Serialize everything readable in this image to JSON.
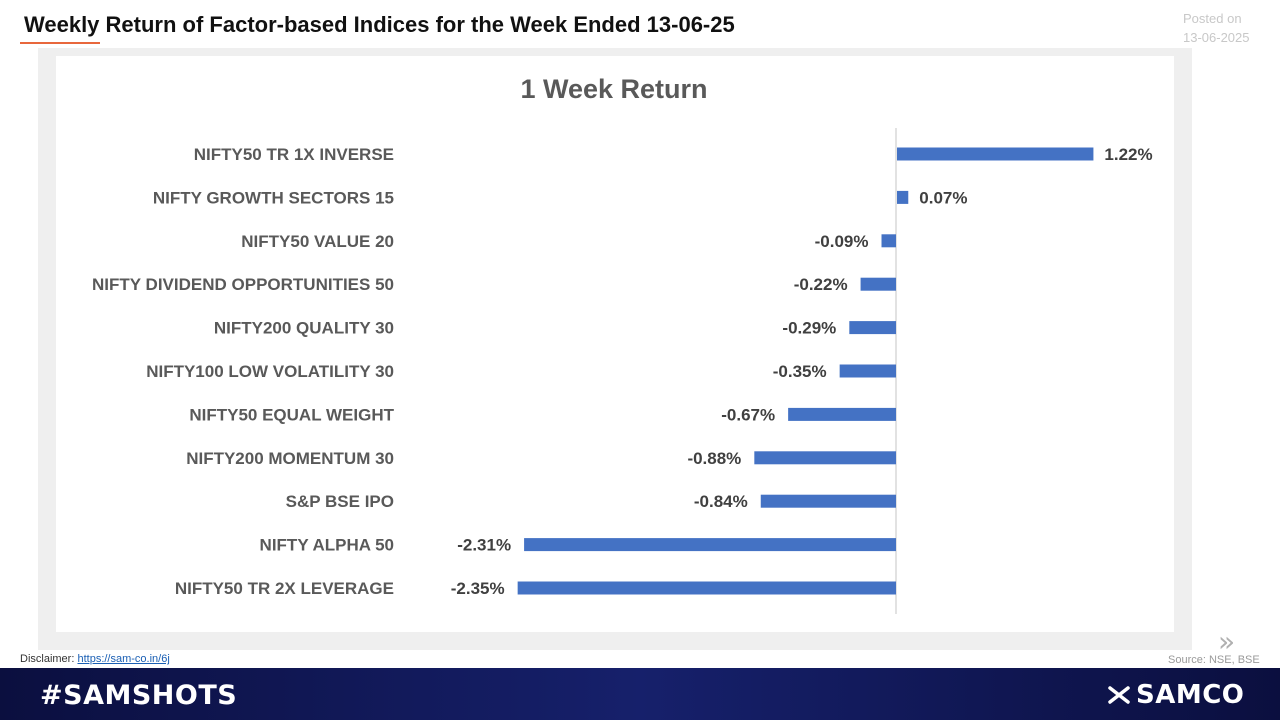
{
  "header": {
    "title": "Weekly Return of Factor-based Indices for the Week Ended 13-06-25",
    "posted_label": "Posted on",
    "posted_date": "13-06-2025"
  },
  "footer": {
    "disclaimer_label": "Disclaimer:",
    "disclaimer_link": "https://sam-co.in/6j",
    "source": "Source: NSE, BSE",
    "hashtag": "#SAMSHOTS",
    "brand": "SAMCO"
  },
  "colors": {
    "bar": "#4472c4",
    "accent": "#e8673c",
    "footer_bg": "#0f1552"
  },
  "chart_data": {
    "type": "bar",
    "orientation": "horizontal",
    "title": "1 Week Return",
    "categories": [
      "NIFTY50 TR 1X INVERSE",
      "NIFTY GROWTH SECTORS 15",
      "NIFTY50 VALUE 20",
      "NIFTY DIVIDEND OPPORTUNITIES 50",
      "NIFTY200 QUALITY 30",
      "NIFTY100 LOW VOLATILITY 30",
      "NIFTY50 EQUAL WEIGHT",
      "NIFTY200 MOMENTUM 30",
      "S&P BSE IPO",
      "NIFTY ALPHA 50",
      "NIFTY50 TR 2X LEVERAGE"
    ],
    "values": [
      1.22,
      0.07,
      -0.09,
      -0.22,
      -0.29,
      -0.35,
      -0.67,
      -0.88,
      -0.84,
      -2.31,
      -2.35
    ],
    "data_labels": [
      "1.22%",
      "0.07%",
      "-0.09%",
      "-0.22%",
      "-0.29%",
      "-0.35%",
      "-0.67%",
      "-0.88%",
      "-0.84%",
      "-2.31%",
      "-2.35%"
    ],
    "unit": "%",
    "grid": false,
    "legend": "none"
  }
}
